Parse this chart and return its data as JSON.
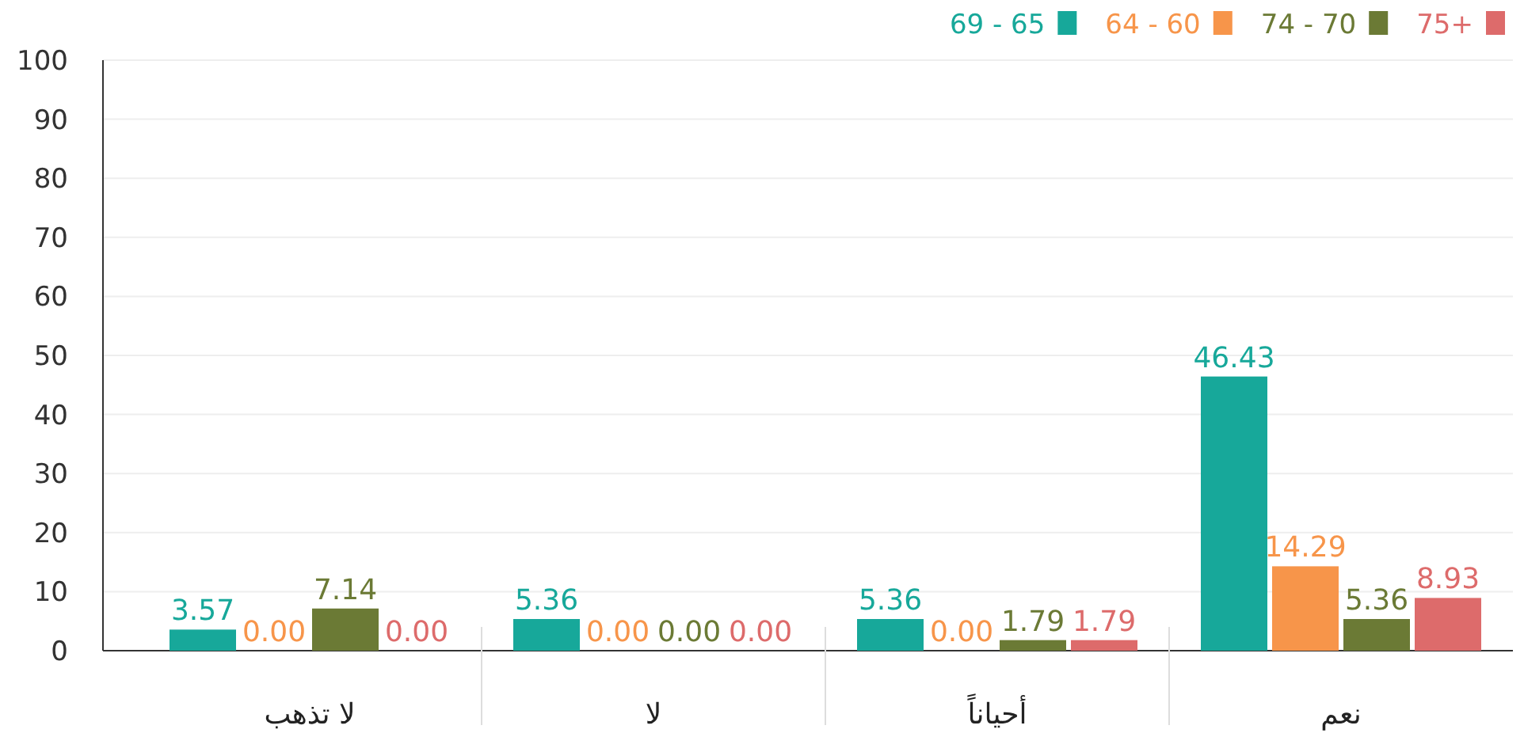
{
  "chart_data": {
    "type": "bar",
    "categories": [
      "لا تذهب",
      "لا",
      "أحياناً",
      "نعم"
    ],
    "series": [
      {
        "name": "69 - 65",
        "color": "#17a89a",
        "values": [
          3.57,
          5.36,
          5.36,
          46.43
        ]
      },
      {
        "name": "64 - 60",
        "color": "#f7954a",
        "values": [
          0.0,
          0.0,
          0.0,
          14.29
        ]
      },
      {
        "name": "74 - 70",
        "color": "#6b7a35",
        "values": [
          7.14,
          0.0,
          1.79,
          5.36
        ]
      },
      {
        "name": "75+",
        "color": "#dd6b6b",
        "values": [
          0.0,
          0.0,
          1.79,
          8.93
        ]
      }
    ],
    "ylim": [
      0,
      100
    ],
    "yticks": [
      0,
      10,
      20,
      30,
      40,
      50,
      60,
      70,
      80,
      90,
      100
    ],
    "grid": "y",
    "legend": "top right",
    "value_labels": [
      [
        "3.57",
        "5.36",
        "5.36",
        "46.43"
      ],
      [
        "0.00",
        "0.00",
        "0.00",
        "14.29"
      ],
      [
        "7.14",
        "0.00",
        "1.79",
        "5.36"
      ],
      [
        "0.00",
        "0.00",
        "1.79",
        "8.93"
      ]
    ]
  }
}
